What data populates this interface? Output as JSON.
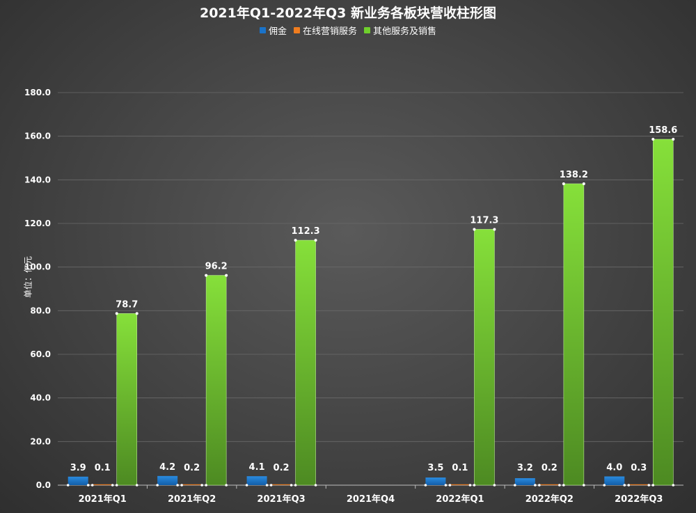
{
  "chart_data": {
    "type": "bar",
    "title": "2021年Q1-2022年Q3 新业务各板块营收柱形图",
    "ylabel": "单位：亿元",
    "xlabel": "",
    "ylim": [
      0,
      180
    ],
    "yticks": [
      "0.0",
      "20.0",
      "40.0",
      "60.0",
      "80.0",
      "100.0",
      "120.0",
      "140.0",
      "160.0",
      "180.0"
    ],
    "categories": [
      "2021年Q1",
      "2021年Q2",
      "2021年Q3",
      "2021年Q4",
      "2022年Q1",
      "2022年Q2",
      "2022年Q3"
    ],
    "legend_position": "top-center",
    "grid": true,
    "series": [
      {
        "name": "佣金",
        "color": "#1a73c9",
        "values": [
          3.9,
          4.2,
          4.1,
          null,
          3.5,
          3.2,
          4.0
        ],
        "labels": [
          "3.9",
          "4.2",
          "4.1",
          "",
          "3.5",
          "3.2",
          "4.0"
        ]
      },
      {
        "name": "在线营销服务",
        "color": "#f07d1f",
        "values": [
          0.1,
          0.2,
          0.2,
          null,
          0.1,
          0.2,
          0.3
        ],
        "labels": [
          "0.1",
          "0.2",
          "0.2",
          "",
          "0.1",
          "0.2",
          "0.3"
        ]
      },
      {
        "name": "其他服务及销售",
        "color": "#6fcf2c",
        "values": [
          78.7,
          96.2,
          112.3,
          null,
          117.3,
          138.2,
          158.6
        ],
        "labels": [
          "78.7",
          "96.2",
          "112.3",
          "",
          "117.3",
          "138.2",
          "158.6"
        ]
      }
    ]
  }
}
